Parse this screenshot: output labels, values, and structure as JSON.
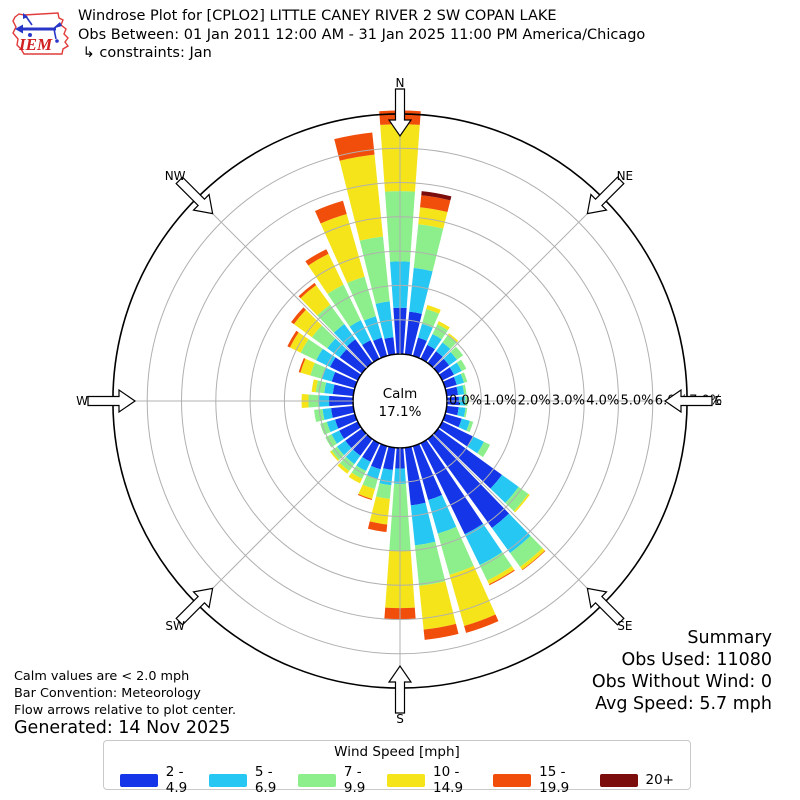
{
  "header": {
    "logo_text": "IEM",
    "title": "Windrose Plot for [CPLO2] LITTLE CANEY RIVER 2 SW COPAN LAKE",
    "subtitle": "Obs Between: 01 Jan 2011 12:00 AM - 31 Jan 2025 11:00 PM America/Chicago",
    "constraints": " ↳ constraints: Jan"
  },
  "summary": {
    "title": "Summary",
    "obs_used": "Obs Used: 11080",
    "obs_without_wind": "Obs Without Wind: 0",
    "avg_speed": "Avg Speed: 5.7 mph"
  },
  "footnotes": {
    "calm_note": "Calm values are < 2.0 mph",
    "convention_note": "Bar Convention: Meteorology",
    "arrows_note": "Flow arrows relative to plot center.",
    "generated": "Generated: 14 Nov 2025"
  },
  "legend": {
    "title": "Wind Speed [mph]",
    "bins": [
      {
        "label": "2 - 4.9",
        "color": "#1435e8"
      },
      {
        "label": "5 - 6.9",
        "color": "#26c7f2"
      },
      {
        "label": "7 - 9.9",
        "color": "#8def8c"
      },
      {
        "label": "10 - 14.9",
        "color": "#f5e41a"
      },
      {
        "label": "15 - 19.9",
        "color": "#f24e0b"
      },
      {
        "label": "20+",
        "color": "#7b0d0d"
      }
    ]
  },
  "chart_data": {
    "type": "windrose-stacked-polar-bar",
    "units": "% of observations",
    "calm": {
      "label": "Calm",
      "percent": "17.1%"
    },
    "ring_labels": [
      "0.0%",
      "1.0%",
      "2.0%",
      "3.0%",
      "4.0%",
      "5.0%",
      "6.0%",
      "7.0%"
    ],
    "ring_values": [
      0,
      1,
      2,
      3,
      4,
      5,
      6,
      7
    ],
    "direction_labels": [
      "N",
      "NE",
      "E",
      "SE",
      "S",
      "SW",
      "W",
      "NW"
    ],
    "direction_label_angles": [
      0,
      45,
      90,
      135,
      180,
      225,
      270,
      315
    ],
    "speed_bins": [
      "2 - 4.9",
      "5 - 6.9",
      "7 - 9.9",
      "10 - 14.9",
      "15 - 19.9",
      "20+"
    ],
    "bin_colors": [
      "#1435e8",
      "#26c7f2",
      "#8def8c",
      "#f5e41a",
      "#f24e0b",
      "#7b0d0d"
    ],
    "rose": [
      {
        "dir": 0,
        "values": [
          1.35,
          1.35,
          2.05,
          1.95,
          0.4,
          0.0
        ]
      },
      {
        "dir": 10,
        "values": [
          1.25,
          1.28,
          1.28,
          0.5,
          0.35,
          0.12
        ]
      },
      {
        "dir": 20,
        "values": [
          0.55,
          0.42,
          0.45,
          0.12,
          0.0,
          0.0
        ]
      },
      {
        "dir": 30,
        "values": [
          0.45,
          0.35,
          0.32,
          0.1,
          0.0,
          0.0
        ]
      },
      {
        "dir": 40,
        "values": [
          0.42,
          0.32,
          0.28,
          0.05,
          0.0,
          0.0
        ]
      },
      {
        "dir": 50,
        "values": [
          0.4,
          0.28,
          0.22,
          0.0,
          0.0,
          0.0
        ]
      },
      {
        "dir": 60,
        "values": [
          0.38,
          0.25,
          0.15,
          0.0,
          0.0,
          0.0
        ]
      },
      {
        "dir": 70,
        "values": [
          0.35,
          0.22,
          0.1,
          0.0,
          0.0,
          0.0
        ]
      },
      {
        "dir": 80,
        "values": [
          0.33,
          0.18,
          0.07,
          0.0,
          0.0,
          0.0
        ]
      },
      {
        "dir": 90,
        "values": [
          0.35,
          0.18,
          0.07,
          0.0,
          0.0,
          0.0
        ]
      },
      {
        "dir": 100,
        "values": [
          0.35,
          0.2,
          0.05,
          0.0,
          0.0,
          0.0
        ]
      },
      {
        "dir": 110,
        "values": [
          0.5,
          0.25,
          0.1,
          0.0,
          0.0,
          0.0
        ]
      },
      {
        "dir": 120,
        "values": [
          1.0,
          0.35,
          0.2,
          0.0,
          0.0,
          0.0
        ]
      },
      {
        "dir": 130,
        "values": [
          2.3,
          0.6,
          0.35,
          0.05,
          0.0,
          0.0
        ]
      },
      {
        "dir": 140,
        "values": [
          3.2,
          0.9,
          0.5,
          0.1,
          0.02,
          0.0
        ]
      },
      {
        "dir": 150,
        "values": [
          2.95,
          1.0,
          0.5,
          0.12,
          0.03,
          0.0
        ]
      },
      {
        "dir": 160,
        "values": [
          1.63,
          1.02,
          1.25,
          1.55,
          0.21,
          0.0
        ]
      },
      {
        "dir": 170,
        "values": [
          1.69,
          1.17,
          1.19,
          1.28,
          0.3,
          0.0
        ]
      },
      {
        "dir": 180,
        "values": [
          0.6,
          0.45,
          1.95,
          1.67,
          0.32,
          0.0
        ]
      },
      {
        "dir": 190,
        "values": [
          0.65,
          0.45,
          0.4,
          0.75,
          0.22,
          0.0
        ]
      },
      {
        "dir": 200,
        "values": [
          0.7,
          0.3,
          0.3,
          0.3,
          0.03,
          0.0
        ]
      },
      {
        "dir": 210,
        "values": [
          0.6,
          0.3,
          0.25,
          0.15,
          0.0,
          0.0
        ]
      },
      {
        "dir": 220,
        "values": [
          0.6,
          0.3,
          0.25,
          0.1,
          0.0,
          0.0
        ]
      },
      {
        "dir": 230,
        "values": [
          0.6,
          0.3,
          0.2,
          0.05,
          0.0,
          0.0
        ]
      },
      {
        "dir": 240,
        "values": [
          0.6,
          0.25,
          0.2,
          0.0,
          0.0,
          0.0
        ]
      },
      {
        "dir": 250,
        "values": [
          0.6,
          0.25,
          0.2,
          0.0,
          0.0,
          0.0
        ]
      },
      {
        "dir": 260,
        "values": [
          0.65,
          0.25,
          0.25,
          0.0,
          0.0,
          0.0
        ]
      },
      {
        "dir": 270,
        "values": [
          0.7,
          0.3,
          0.3,
          0.2,
          0.0,
          0.0
        ]
      },
      {
        "dir": 280,
        "values": [
          0.6,
          0.25,
          0.25,
          0.12,
          0.0,
          0.0
        ]
      },
      {
        "dir": 290,
        "values": [
          0.7,
          0.3,
          0.35,
          0.3,
          0.05,
          0.0
        ]
      },
      {
        "dir": 300,
        "values": [
          0.9,
          0.45,
          0.5,
          0.35,
          0.08,
          0.0
        ]
      },
      {
        "dir": 310,
        "values": [
          0.8,
          0.45,
          0.55,
          0.65,
          0.1,
          0.0
        ]
      },
      {
        "dir": 320,
        "values": [
          0.85,
          0.55,
          0.7,
          0.7,
          0.08,
          0.0
        ]
      },
      {
        "dir": 330,
        "values": [
          0.6,
          0.65,
          1.15,
          1.0,
          0.15,
          0.0
        ]
      },
      {
        "dir": 340,
        "values": [
          0.55,
          0.65,
          1.2,
          1.9,
          0.4,
          0.0
        ]
      },
      {
        "dir": 350,
        "values": [
          0.5,
          1.05,
          1.9,
          2.4,
          0.65,
          0.0
        ]
      }
    ]
  }
}
